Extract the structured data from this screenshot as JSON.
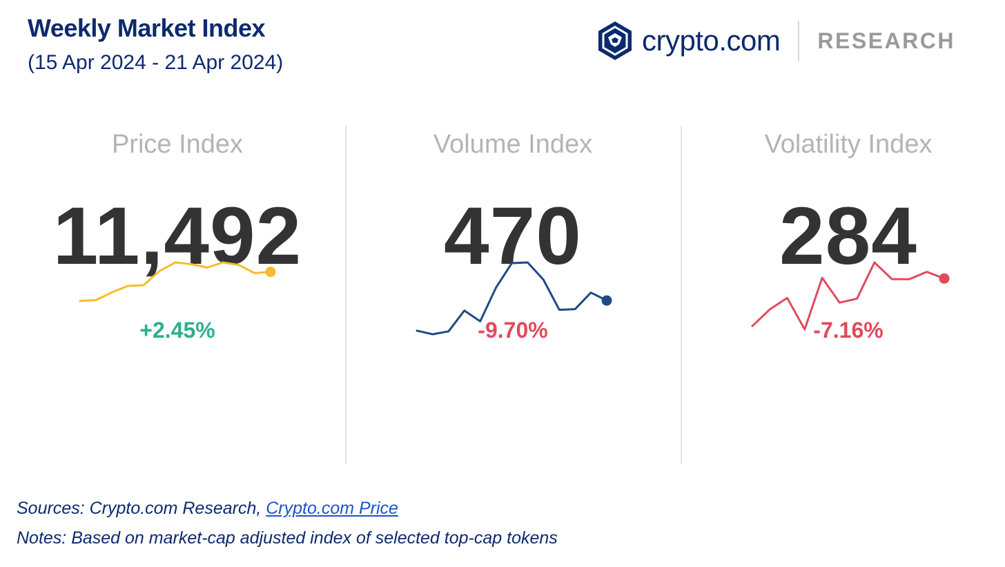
{
  "header": {
    "title": "Weekly Market Index",
    "subtitle": "(15 Apr 2024 - 21 Apr 2024)"
  },
  "brand": {
    "name": "crypto.com",
    "division": "RESEARCH"
  },
  "colors": {
    "positive": "#2bb08f",
    "negative": "#e04a5e",
    "price_line": "#f5bd2e",
    "volume_line": "#1f4a85",
    "volatility_line": "#e04a5e"
  },
  "chart_data": [
    {
      "type": "line",
      "title": "Price Index",
      "value": "11,492",
      "change": "+2.45%",
      "change_direction": "up",
      "values": [
        0.1,
        0.12,
        0.3,
        0.45,
        0.47,
        0.8,
        1.0,
        0.96,
        0.88,
        1.0,
        0.94,
        0.75,
        0.78
      ],
      "ylim": [
        0,
        1
      ]
    },
    {
      "type": "line",
      "title": "Volume Index",
      "value": "470",
      "change": "-9.70%",
      "change_direction": "down",
      "values": [
        0.05,
        0.0,
        0.04,
        0.33,
        0.18,
        0.65,
        0.99,
        1.0,
        0.76,
        0.34,
        0.35,
        0.58,
        0.47
      ],
      "ylim": [
        0,
        1
      ]
    },
    {
      "type": "line",
      "title": "Volatility Index",
      "value": "284",
      "change": "-7.16%",
      "change_direction": "down",
      "values": [
        0.05,
        0.3,
        0.47,
        0.0,
        0.77,
        0.4,
        0.46,
        1.0,
        0.75,
        0.75,
        0.86,
        0.76
      ],
      "ylim": [
        0,
        1
      ]
    }
  ],
  "footer": {
    "sources_prefix": "Sources: Crypto.com Research, ",
    "sources_link": "Crypto.com Price",
    "notes": "Notes: Based on market-cap adjusted index of selected top-cap tokens"
  }
}
